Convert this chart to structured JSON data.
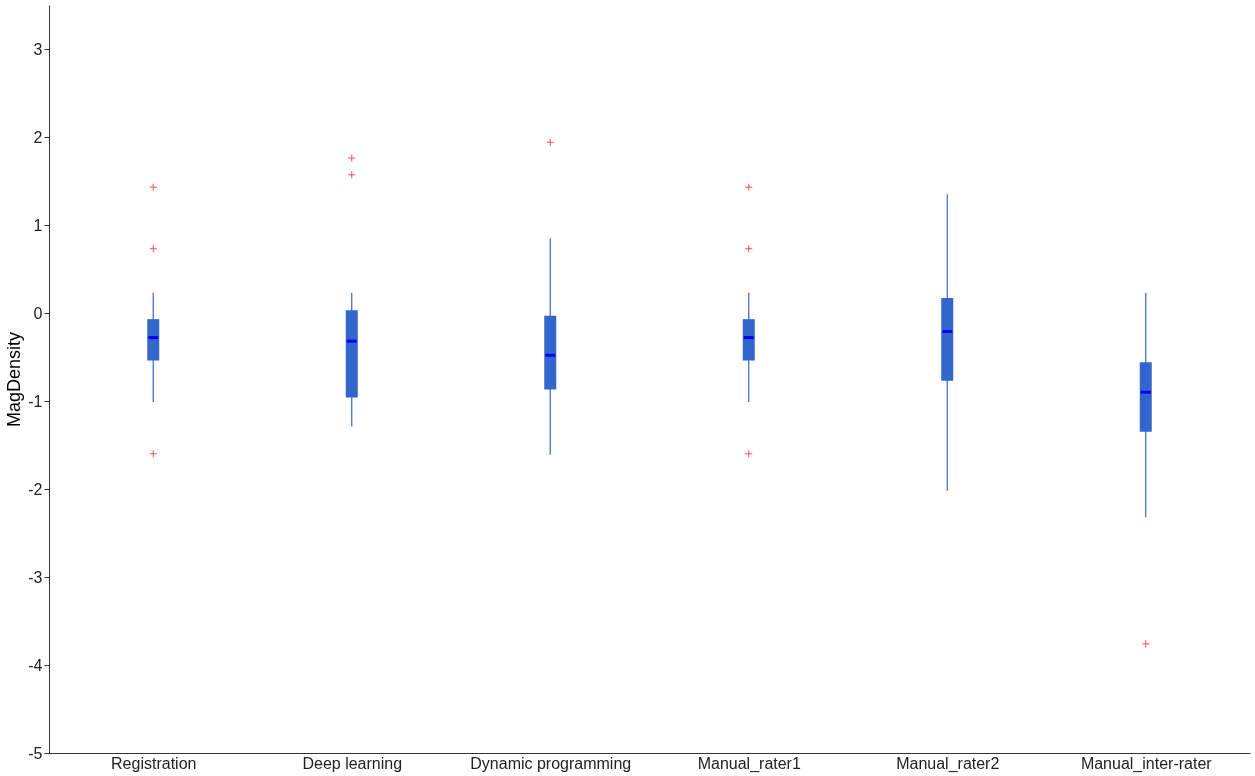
{
  "chart_data": {
    "type": "box",
    "ylabel": "MagDensity",
    "categories": [
      "Registration",
      "Deep learning",
      "Dynamic programming",
      "Manual_rater1",
      "Manual_rater2",
      "Manual_inter-rater"
    ],
    "ylim": [
      -5,
      3.5
    ],
    "yticks": [
      -5,
      -4,
      -3,
      -2,
      -1,
      0,
      1,
      2,
      3
    ],
    "grid": false,
    "series": [
      {
        "color": "#3366cc",
        "boxes": [
          {
            "low": -1.01,
            "q1": -0.54,
            "median": -0.28,
            "q3": -0.07,
            "high": 0.23,
            "outliers": [
              1.43,
              0.73,
              -1.6
            ]
          },
          {
            "low": -1.29,
            "q1": -0.96,
            "median": -0.32,
            "q3": 0.03,
            "high": 0.23,
            "outliers": [
              1.76,
              1.57
            ]
          },
          {
            "low": -1.61,
            "q1": -0.87,
            "median": -0.48,
            "q3": -0.03,
            "high": 0.85,
            "outliers": [
              1.94
            ]
          },
          {
            "low": -1.01,
            "q1": -0.54,
            "median": -0.28,
            "q3": -0.07,
            "high": 0.23,
            "outliers": [
              1.43,
              0.73,
              -1.6
            ]
          },
          {
            "low": -2.02,
            "q1": -0.77,
            "median": -0.21,
            "q3": 0.17,
            "high": 1.35
          },
          {
            "low": -2.32,
            "q1": -1.35,
            "median": -0.9,
            "q3": -0.56,
            "high": 0.23,
            "outliers": [
              -3.76
            ]
          }
        ]
      }
    ]
  }
}
